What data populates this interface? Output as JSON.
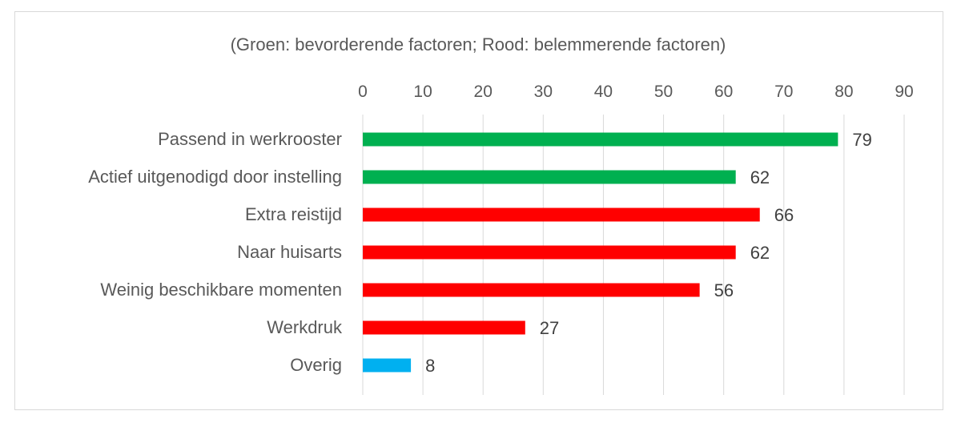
{
  "chart_data": {
    "type": "bar",
    "orientation": "horizontal",
    "subtitle": "(Groen: bevorderende factoren; Rood: belemmerende factoren)",
    "categories": [
      "Passend in werkrooster",
      "Actief uitgenodigd door instelling",
      "Extra reistijd",
      "Naar huisarts",
      "Weinig beschikbare momenten",
      "Werkdruk",
      "Overig"
    ],
    "values": [
      79,
      62,
      66,
      62,
      56,
      27,
      8
    ],
    "bar_colors": [
      "#00b050",
      "#00b050",
      "#ff0000",
      "#ff0000",
      "#ff0000",
      "#ff0000",
      "#00b0f0"
    ],
    "xlim": [
      0,
      90
    ],
    "x_ticks": [
      0,
      10,
      20,
      30,
      40,
      50,
      60,
      70,
      80,
      90
    ],
    "x_axis_position": "top",
    "grid": true,
    "gridline_color": "#d9d9d9",
    "data_labels": true,
    "legend": "none"
  }
}
